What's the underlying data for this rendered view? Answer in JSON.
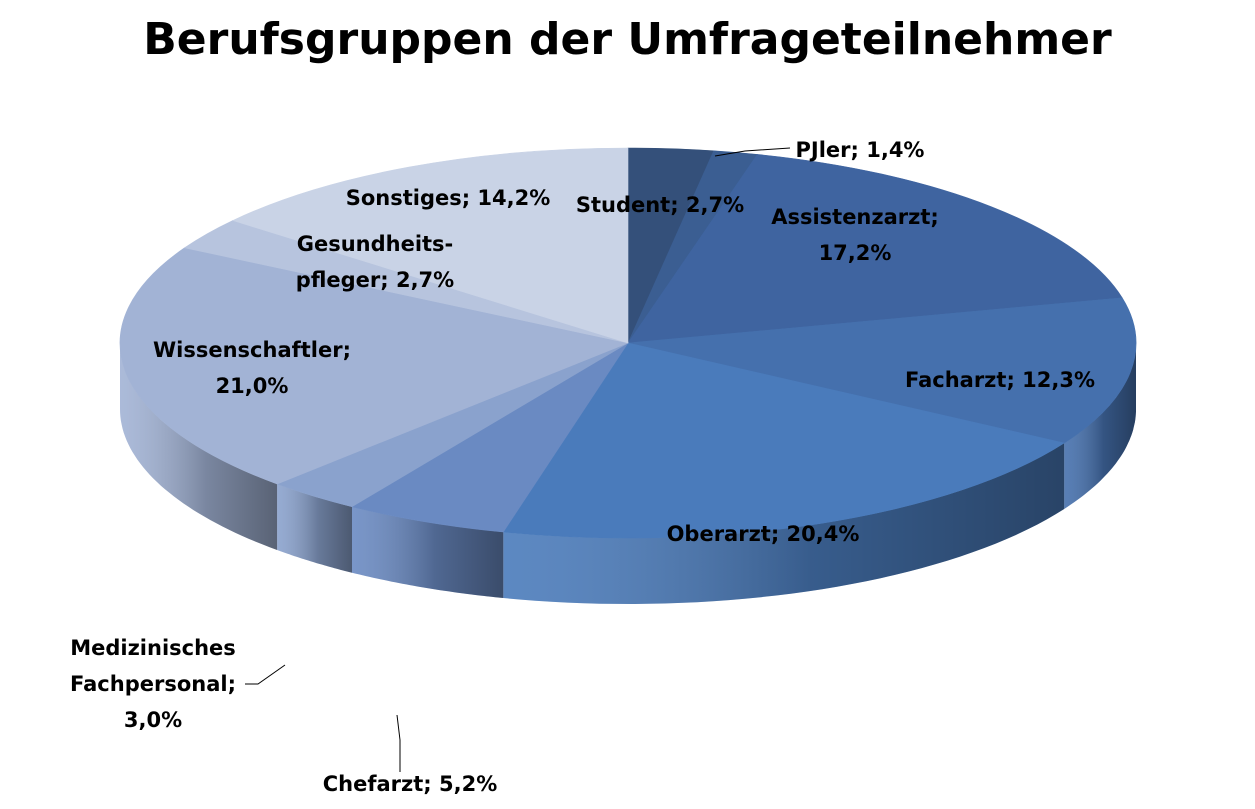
{
  "chart_data": {
    "type": "pie",
    "title": "Berufsgruppen der Umfrageteilnehmer",
    "slices": [
      {
        "name": "Student",
        "value": 2.7,
        "color": "#34507a",
        "label_lines": [
          "Student; 2,7%"
        ]
      },
      {
        "name": "PJler",
        "value": 1.4,
        "color": "#3b5e92",
        "label_lines": [
          "PJler; 1,4%"
        ]
      },
      {
        "name": "Assistenzarzt",
        "value": 17.2,
        "color": "#3f64a0",
        "label_lines": [
          "Assistenzarzt;",
          "17,2%"
        ]
      },
      {
        "name": "Facharzt",
        "value": 12.3,
        "color": "#4570ad",
        "label_lines": [
          "Facharzt; 12,3%"
        ]
      },
      {
        "name": "Oberarzt",
        "value": 20.4,
        "color": "#4a7bbb",
        "label_lines": [
          "Oberarzt; 20,4%"
        ]
      },
      {
        "name": "Chefarzt",
        "value": 5.2,
        "color": "#6a8ac2",
        "label_lines": [
          "Chefarzt; 5,2%"
        ]
      },
      {
        "name": "Medizinisches Fachpersonal",
        "value": 3.0,
        "color": "#8aa2cd",
        "label_lines": [
          "Medizinisches",
          "Fachpersonal;",
          "3,0%"
        ]
      },
      {
        "name": "Wissenschaftler",
        "value": 21.0,
        "color": "#a2b3d5",
        "label_lines": [
          "Wissenschaftler;",
          "21,0%"
        ]
      },
      {
        "name": "Gesundheitspfleger",
        "value": 2.7,
        "color": "#b7c4de",
        "label_lines": [
          "Gesundheits-",
          "pfleger; 2,7%"
        ]
      },
      {
        "name": "Sonstiges",
        "value": 14.2,
        "color": "#c9d3e6",
        "label_lines": [
          "Sonstiges; 14,2%"
        ]
      }
    ],
    "legend": "none",
    "start_angle": "12 o'clock, clockwise",
    "style": "3d"
  }
}
